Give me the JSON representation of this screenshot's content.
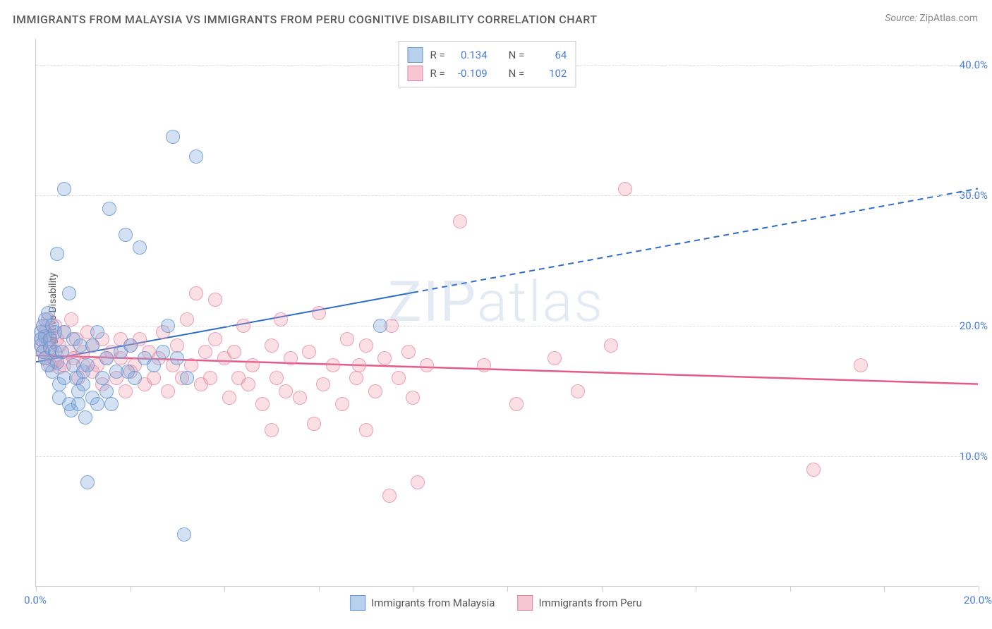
{
  "title": "IMMIGRANTS FROM MALAYSIA VS IMMIGRANTS FROM PERU COGNITIVE DISABILITY CORRELATION CHART",
  "source_label": "Source:",
  "source_value": "ZipAtlas.com",
  "ylabel": "Cognitive Disability",
  "watermark": "ZIPatlas",
  "chart": {
    "type": "scatter",
    "xlim": [
      0,
      20
    ],
    "ylim": [
      0,
      42
    ],
    "x_ticks": [
      0,
      2,
      4,
      6,
      8,
      10,
      12,
      14,
      16,
      18,
      20
    ],
    "x_tick_labels": {
      "0": "0.0%",
      "20": "20.0%"
    },
    "y_grid": [
      10,
      20,
      30,
      40
    ],
    "y_tick_labels": {
      "10": "10.0%",
      "20": "20.0%",
      "30": "30.0%",
      "40": "40.0%"
    },
    "background_color": "#ffffff",
    "grid_color": "#dddddd",
    "axis_color": "#cccccc",
    "tick_label_color": "#4a7fd8",
    "point_radius": 9
  },
  "series": [
    {
      "name": "Immigrants from Malaysia",
      "color_fill": "rgba(130,170,220,0.35)",
      "color_stroke": "#6496d2",
      "swatch_fill": "#b9d0ec",
      "swatch_border": "#6496d2",
      "R": "0.134",
      "N": "64",
      "trend": {
        "x1": 0,
        "y1": 17.2,
        "x2": 20,
        "y2": 30.5,
        "solid_until_x": 8.0,
        "color": "#2d6cc7",
        "width": 2
      },
      "points": [
        [
          0.1,
          19.5
        ],
        [
          0.1,
          18.5
        ],
        [
          0.1,
          19.0
        ],
        [
          0.15,
          20.0
        ],
        [
          0.15,
          18.0
        ],
        [
          0.2,
          19.2
        ],
        [
          0.2,
          17.5
        ],
        [
          0.2,
          20.5
        ],
        [
          0.25,
          17.0
        ],
        [
          0.25,
          21.0
        ],
        [
          0.3,
          18.3
        ],
        [
          0.3,
          19.0
        ],
        [
          0.35,
          16.5
        ],
        [
          0.35,
          20.0
        ],
        [
          0.4,
          18.0
        ],
        [
          0.4,
          19.5
        ],
        [
          0.45,
          17.2
        ],
        [
          0.45,
          25.5
        ],
        [
          0.5,
          14.5
        ],
        [
          0.5,
          15.5
        ],
        [
          0.55,
          18.0
        ],
        [
          0.6,
          16.0
        ],
        [
          0.6,
          19.5
        ],
        [
          0.7,
          22.5
        ],
        [
          0.7,
          14.0
        ],
        [
          0.75,
          13.5
        ],
        [
          0.8,
          17.0
        ],
        [
          0.8,
          19.0
        ],
        [
          0.85,
          16.0
        ],
        [
          0.9,
          15.0
        ],
        [
          0.9,
          14.0
        ],
        [
          0.95,
          18.5
        ],
        [
          1.0,
          15.5
        ],
        [
          1.0,
          16.5
        ],
        [
          1.05,
          13.0
        ],
        [
          1.1,
          17.0
        ],
        [
          1.1,
          8.0
        ],
        [
          1.2,
          14.5
        ],
        [
          1.2,
          18.5
        ],
        [
          1.3,
          14.0
        ],
        [
          1.3,
          19.5
        ],
        [
          1.4,
          16.0
        ],
        [
          1.5,
          15.0
        ],
        [
          1.5,
          17.5
        ],
        [
          1.55,
          29.0
        ],
        [
          1.6,
          14.0
        ],
        [
          1.7,
          16.5
        ],
        [
          1.8,
          18.0
        ],
        [
          1.9,
          27.0
        ],
        [
          1.95,
          16.5
        ],
        [
          2.0,
          18.5
        ],
        [
          2.1,
          16.0
        ],
        [
          2.2,
          26.0
        ],
        [
          2.3,
          17.5
        ],
        [
          2.5,
          17.0
        ],
        [
          2.7,
          18.0
        ],
        [
          2.8,
          20.0
        ],
        [
          2.9,
          34.5
        ],
        [
          3.0,
          17.5
        ],
        [
          3.2,
          16.0
        ],
        [
          3.4,
          33.0
        ],
        [
          3.15,
          4.0
        ],
        [
          7.3,
          20.0
        ],
        [
          0.6,
          30.5
        ]
      ]
    },
    {
      "name": "Immigrants from Peru",
      "color_fill": "rgba(240,150,170,0.30)",
      "color_stroke": "#e6829f",
      "swatch_fill": "#f6c6d2",
      "swatch_border": "#e6829f",
      "R": "-0.109",
      "N": "102",
      "trend": {
        "x1": 0,
        "y1": 17.7,
        "x2": 20,
        "y2": 15.5,
        "solid_until_x": 20,
        "color": "#e55a8a",
        "width": 2.5
      },
      "points": [
        [
          0.1,
          18.5
        ],
        [
          0.1,
          19.0
        ],
        [
          0.15,
          20.0
        ],
        [
          0.15,
          18.0
        ],
        [
          0.2,
          19.5
        ],
        [
          0.2,
          17.5
        ],
        [
          0.25,
          18.8
        ],
        [
          0.25,
          20.5
        ],
        [
          0.3,
          17.0
        ],
        [
          0.3,
          19.2
        ],
        [
          0.35,
          18.0
        ],
        [
          0.4,
          20.0
        ],
        [
          0.4,
          17.3
        ],
        [
          0.45,
          19.0
        ],
        [
          0.5,
          18.5
        ],
        [
          0.5,
          16.8
        ],
        [
          0.6,
          19.5
        ],
        [
          0.6,
          17.0
        ],
        [
          0.7,
          18.0
        ],
        [
          0.75,
          20.5
        ],
        [
          0.8,
          17.5
        ],
        [
          0.85,
          19.0
        ],
        [
          0.9,
          16.0
        ],
        [
          1.0,
          18.0
        ],
        [
          1.0,
          17.0
        ],
        [
          1.1,
          19.5
        ],
        [
          1.2,
          16.5
        ],
        [
          1.2,
          18.5
        ],
        [
          1.3,
          17.0
        ],
        [
          1.4,
          19.0
        ],
        [
          1.4,
          15.5
        ],
        [
          1.5,
          17.5
        ],
        [
          1.6,
          18.0
        ],
        [
          1.7,
          16.0
        ],
        [
          1.8,
          19.0
        ],
        [
          1.8,
          17.5
        ],
        [
          1.9,
          15.0
        ],
        [
          2.0,
          18.5
        ],
        [
          2.0,
          16.5
        ],
        [
          2.1,
          17.0
        ],
        [
          2.2,
          19.0
        ],
        [
          2.3,
          15.5
        ],
        [
          2.4,
          18.0
        ],
        [
          2.5,
          16.0
        ],
        [
          2.6,
          17.5
        ],
        [
          2.7,
          19.5
        ],
        [
          2.8,
          15.0
        ],
        [
          2.9,
          17.0
        ],
        [
          3.0,
          18.5
        ],
        [
          3.1,
          16.0
        ],
        [
          3.2,
          20.5
        ],
        [
          3.3,
          17.0
        ],
        [
          3.4,
          22.5
        ],
        [
          3.5,
          15.5
        ],
        [
          3.6,
          18.0
        ],
        [
          3.7,
          16.0
        ],
        [
          3.8,
          19.0
        ],
        [
          3.8,
          22.0
        ],
        [
          4.0,
          17.5
        ],
        [
          4.1,
          14.5
        ],
        [
          4.2,
          18.0
        ],
        [
          4.3,
          16.0
        ],
        [
          4.4,
          20.0
        ],
        [
          4.5,
          15.5
        ],
        [
          4.6,
          17.0
        ],
        [
          4.8,
          14.0
        ],
        [
          5.0,
          18.5
        ],
        [
          5.0,
          12.0
        ],
        [
          5.1,
          16.0
        ],
        [
          5.2,
          20.5
        ],
        [
          5.3,
          15.0
        ],
        [
          5.4,
          17.5
        ],
        [
          5.6,
          14.5
        ],
        [
          5.8,
          18.0
        ],
        [
          5.9,
          12.5
        ],
        [
          6.0,
          21.0
        ],
        [
          6.1,
          15.5
        ],
        [
          6.3,
          17.0
        ],
        [
          6.5,
          14.0
        ],
        [
          6.6,
          19.0
        ],
        [
          6.8,
          16.0
        ],
        [
          6.85,
          17.0
        ],
        [
          7.0,
          18.5
        ],
        [
          7.0,
          12.0
        ],
        [
          7.2,
          15.0
        ],
        [
          7.4,
          17.5
        ],
        [
          7.5,
          7.0
        ],
        [
          7.55,
          20.0
        ],
        [
          7.7,
          16.0
        ],
        [
          7.9,
          18.0
        ],
        [
          8.0,
          14.5
        ],
        [
          8.1,
          8.0
        ],
        [
          8.3,
          17.0
        ],
        [
          9.0,
          28.0
        ],
        [
          9.5,
          17.0
        ],
        [
          10.2,
          14.0
        ],
        [
          11.0,
          17.5
        ],
        [
          11.5,
          15.0
        ],
        [
          12.2,
          18.5
        ],
        [
          12.5,
          30.5
        ],
        [
          16.5,
          9.0
        ],
        [
          17.5,
          17.0
        ]
      ]
    }
  ],
  "legend_top": {
    "r_label": "R =",
    "n_label": "N ="
  },
  "legend_bottom": [
    {
      "label": "Immigrants from Malaysia",
      "fill": "#b9d0ec",
      "border": "#6496d2"
    },
    {
      "label": "Immigrants from Peru",
      "fill": "#f6c6d2",
      "border": "#e6829f"
    }
  ]
}
